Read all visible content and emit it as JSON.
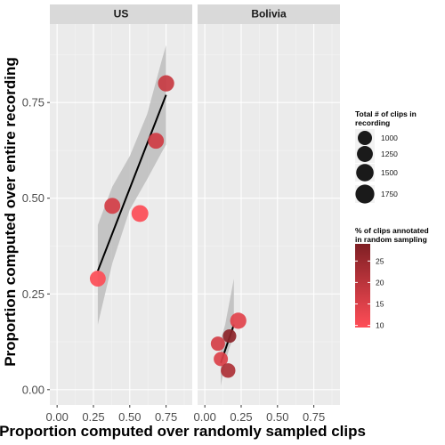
{
  "chart_data": {
    "type": "scatter",
    "xlabel": "Proportion computed over randomly sampled clips",
    "ylabel": "Proportion computed over entire recording",
    "xlim": [
      -0.05,
      0.93
    ],
    "ylim": [
      -0.04,
      0.955
    ],
    "x_ticks": [
      "0.00",
      "0.25",
      "0.50",
      "0.75"
    ],
    "y_ticks": [
      "0.00",
      "0.25",
      "0.50",
      "0.75"
    ],
    "x_tick_values": [
      0,
      0.25,
      0.5,
      0.75
    ],
    "y_tick_values": [
      0,
      0.25,
      0.5,
      0.75
    ],
    "grid": true,
    "legend_position": "right",
    "colors": {
      "low": "#ff4d57",
      "high": "#7f1f24",
      "band": "#bdbdbd",
      "fit": "#000000",
      "panel": "#ebebeb",
      "strip": "#d9d9d9"
    },
    "panels": [
      {
        "name": "US",
        "points": [
          {
            "x": 0.28,
            "y": 0.29,
            "clips": 1250,
            "pct": 10
          },
          {
            "x": 0.38,
            "y": 0.48,
            "clips": 1250,
            "pct": 16
          },
          {
            "x": 0.57,
            "y": 0.46,
            "clips": 1400,
            "pct": 10
          },
          {
            "x": 0.68,
            "y": 0.65,
            "clips": 1250,
            "pct": 17
          },
          {
            "x": 0.75,
            "y": 0.8,
            "clips": 1300,
            "pct": 18
          }
        ],
        "fit": {
          "x": [
            0.28,
            0.75
          ],
          "y": [
            0.31,
            0.77
          ]
        },
        "band": {
          "x": [
            0.28,
            0.38,
            0.5,
            0.62,
            0.72,
            0.75
          ],
          "lower": [
            0.17,
            0.33,
            0.47,
            0.55,
            0.62,
            0.64
          ],
          "upper": [
            0.43,
            0.53,
            0.61,
            0.72,
            0.86,
            0.9
          ]
        }
      },
      {
        "name": "Bolivia",
        "points": [
          {
            "x": 0.09,
            "y": 0.12,
            "clips": 1000,
            "pct": 16
          },
          {
            "x": 0.11,
            "y": 0.08,
            "clips": 1000,
            "pct": 15
          },
          {
            "x": 0.16,
            "y": 0.05,
            "clips": 1050,
            "pct": 22
          },
          {
            "x": 0.17,
            "y": 0.14,
            "clips": 900,
            "pct": 27
          },
          {
            "x": 0.23,
            "y": 0.18,
            "clips": 1300,
            "pct": 14
          }
        ],
        "fit": {
          "x": [
            0.11,
            0.2
          ],
          "y": [
            0.07,
            0.17
          ]
        },
        "band": {
          "x": [
            0.11,
            0.14,
            0.17,
            0.2
          ],
          "lower": [
            0.01,
            0.07,
            0.11,
            0.14
          ],
          "upper": [
            0.13,
            0.17,
            0.23,
            0.29
          ]
        }
      }
    ],
    "size_legend": {
      "title": "Total # of clips in recording",
      "title_lines": [
        "Total # of clips in",
        " recording"
      ],
      "entries": [
        {
          "label": "1000",
          "value": 1000
        },
        {
          "label": "1250",
          "value": 1250
        },
        {
          "label": "1500",
          "value": 1500
        },
        {
          "label": "1750",
          "value": 1750
        }
      ]
    },
    "color_legend": {
      "title": "% of clips annotated in random sampling",
      "title_lines": [
        "% of clips annotated",
        " in random sampling"
      ],
      "min": 9.5,
      "max": 29,
      "ticks": [
        {
          "label": "25",
          "value": 25
        },
        {
          "label": "20",
          "value": 20
        },
        {
          "label": "15",
          "value": 15
        },
        {
          "label": "10",
          "value": 10
        }
      ]
    }
  }
}
